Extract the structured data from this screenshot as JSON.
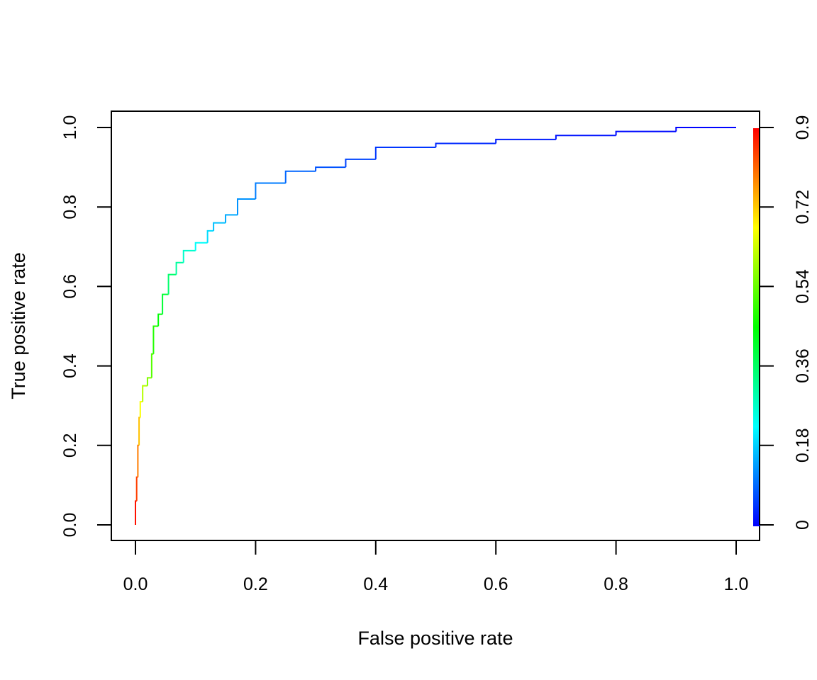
{
  "chart_data": {
    "type": "line",
    "title": "",
    "xlabel": "False positive rate",
    "ylabel": "True positive rate",
    "xlim": [
      0,
      1
    ],
    "ylim": [
      0,
      1
    ],
    "xticks": [
      "0.0",
      "0.2",
      "0.4",
      "0.6",
      "0.8",
      "1.0"
    ],
    "yticks": [
      "0.0",
      "0.2",
      "0.4",
      "0.6",
      "0.8",
      "1.0"
    ],
    "grid": false,
    "colorbar": {
      "placement": "right",
      "range": [
        0,
        0.9
      ],
      "ticks": [
        "0",
        "0.18",
        "0.36",
        "0.54",
        "0.72",
        "0.9"
      ],
      "colors": [
        "#0000ff",
        "#00ffff",
        "#00ff00",
        "#ffff00",
        "#ff0000"
      ]
    },
    "series": [
      {
        "points": [
          [
            0.0,
            0.0,
            0.9
          ],
          [
            0.002,
            0.06,
            0.87
          ],
          [
            0.004,
            0.12,
            0.82
          ],
          [
            0.006,
            0.2,
            0.76
          ],
          [
            0.008,
            0.27,
            0.7
          ],
          [
            0.012,
            0.31,
            0.64
          ],
          [
            0.02,
            0.35,
            0.58
          ],
          [
            0.027,
            0.37,
            0.55
          ],
          [
            0.03,
            0.43,
            0.5
          ],
          [
            0.038,
            0.5,
            0.46
          ],
          [
            0.045,
            0.53,
            0.43
          ],
          [
            0.055,
            0.58,
            0.38
          ],
          [
            0.068,
            0.63,
            0.33
          ],
          [
            0.08,
            0.66,
            0.29
          ],
          [
            0.1,
            0.69,
            0.25
          ],
          [
            0.12,
            0.71,
            0.21
          ],
          [
            0.13,
            0.74,
            0.18
          ],
          [
            0.15,
            0.76,
            0.16
          ],
          [
            0.17,
            0.78,
            0.14
          ],
          [
            0.2,
            0.82,
            0.12
          ],
          [
            0.25,
            0.86,
            0.1
          ],
          [
            0.3,
            0.89,
            0.08
          ],
          [
            0.35,
            0.9,
            0.065
          ],
          [
            0.4,
            0.92,
            0.055
          ],
          [
            0.5,
            0.95,
            0.04
          ],
          [
            0.6,
            0.96,
            0.03
          ],
          [
            0.7,
            0.97,
            0.02
          ],
          [
            0.8,
            0.98,
            0.012
          ],
          [
            0.9,
            0.99,
            0.006
          ],
          [
            1.0,
            1.0,
            0.0
          ]
        ]
      }
    ]
  }
}
